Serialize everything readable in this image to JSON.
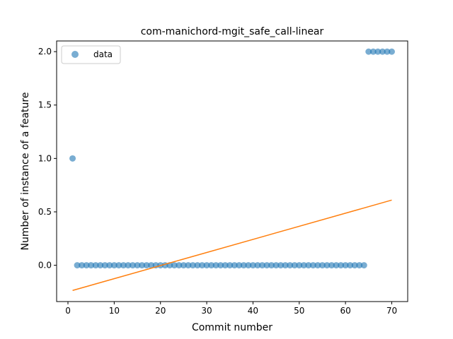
{
  "chart_data": {
    "type": "scatter",
    "title": "com-manichord-mgit_safe_call-linear",
    "xlabel": "Commit number",
    "ylabel": "Number of instance of a feature",
    "xlim": [
      -2.45,
      73.45
    ],
    "ylim": [
      -0.34,
      2.1
    ],
    "xticks": [
      0,
      10,
      20,
      30,
      40,
      50,
      60,
      70
    ],
    "yticks": [
      0.0,
      0.5,
      1.0,
      1.5,
      2.0
    ],
    "xtick_labels": [
      "0",
      "10",
      "20",
      "30",
      "40",
      "50",
      "60",
      "70"
    ],
    "ytick_labels": [
      "0.0",
      "0.5",
      "1.0",
      "1.5",
      "2.0"
    ],
    "grid": false,
    "legend_position": "top-left",
    "series": [
      {
        "name": "data",
        "kind": "scatter",
        "color": "#1f77b4",
        "x": [
          1,
          2,
          3,
          4,
          5,
          6,
          7,
          8,
          9,
          10,
          11,
          12,
          13,
          14,
          15,
          16,
          17,
          18,
          19,
          20,
          21,
          22,
          23,
          24,
          25,
          26,
          27,
          28,
          29,
          30,
          31,
          32,
          33,
          34,
          35,
          36,
          37,
          38,
          39,
          40,
          41,
          42,
          43,
          44,
          45,
          46,
          47,
          48,
          49,
          50,
          51,
          52,
          53,
          54,
          55,
          56,
          57,
          58,
          59,
          60,
          61,
          62,
          63,
          64,
          65,
          66,
          67,
          68,
          69,
          70
        ],
        "y": [
          1,
          0,
          0,
          0,
          0,
          0,
          0,
          0,
          0,
          0,
          0,
          0,
          0,
          0,
          0,
          0,
          0,
          0,
          0,
          0,
          0,
          0,
          0,
          0,
          0,
          0,
          0,
          0,
          0,
          0,
          0,
          0,
          0,
          0,
          0,
          0,
          0,
          0,
          0,
          0,
          0,
          0,
          0,
          0,
          0,
          0,
          0,
          0,
          0,
          0,
          0,
          0,
          0,
          0,
          0,
          0,
          0,
          0,
          0,
          0,
          0,
          0,
          0,
          0,
          2,
          2,
          2,
          2,
          2,
          2
        ]
      },
      {
        "kind": "line",
        "color": "#ff7f0e",
        "x": [
          1,
          70
        ],
        "y": [
          -0.236,
          0.61
        ]
      }
    ]
  }
}
